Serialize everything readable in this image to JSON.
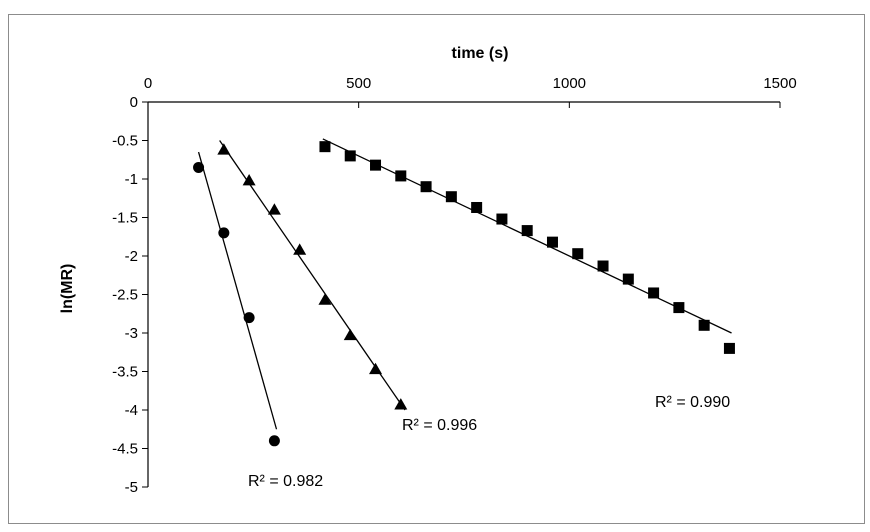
{
  "chart_data": {
    "type": "scatter",
    "xlabel": "time (s)",
    "ylabel": "ln(MR)",
    "xlim": [
      0,
      1500
    ],
    "ylim": [
      -5,
      0
    ],
    "x_ticks": [
      0,
      500,
      1000,
      1500
    ],
    "y_ticks": [
      0,
      -0.5,
      -1,
      -1.5,
      -2,
      -2.5,
      -3,
      -3.5,
      -4,
      -4.5,
      -5
    ],
    "x_tick_labels": [
      "0",
      "500",
      "1000",
      "1500"
    ],
    "y_tick_labels": [
      "0",
      "-0.5",
      "-1",
      "-1.5",
      "-2",
      "-2.5",
      "-3",
      "-3.5",
      "-4",
      "-4.5",
      "-5"
    ],
    "x_axis_position": "top",
    "grid": false,
    "marker_color": "#000000",
    "series": [
      {
        "marker": "circle",
        "x": [
          120,
          180,
          240,
          300
        ],
        "y": [
          -0.85,
          -1.7,
          -2.8,
          -4.4
        ],
        "trendline": {
          "x": [
            120,
            305
          ],
          "y": [
            -0.65,
            -4.25
          ]
        },
        "r2_label": "R² = 0.982"
      },
      {
        "marker": "triangle",
        "x": [
          180,
          240,
          300,
          360,
          420,
          480,
          540,
          600
        ],
        "y": [
          -0.62,
          -1.02,
          -1.4,
          -1.92,
          -2.57,
          -3.03,
          -3.47,
          -3.93
        ],
        "trendline": {
          "x": [
            170,
            610
          ],
          "y": [
            -0.5,
            -4.0
          ]
        },
        "r2_label": "R² = 0.996"
      },
      {
        "marker": "square",
        "x": [
          420,
          480,
          540,
          600,
          660,
          720,
          780,
          840,
          900,
          960,
          1020,
          1080,
          1140,
          1200,
          1260,
          1320,
          1380
        ],
        "y": [
          -0.58,
          -0.7,
          -0.82,
          -0.96,
          -1.1,
          -1.23,
          -1.37,
          -1.52,
          -1.67,
          -1.82,
          -1.97,
          -2.13,
          -2.3,
          -2.48,
          -2.67,
          -2.9,
          -3.2
        ],
        "trendline": {
          "x": [
            415,
            1385
          ],
          "y": [
            -0.48,
            -3.0
          ]
        },
        "r2_label": "R² = 0.990"
      }
    ]
  }
}
